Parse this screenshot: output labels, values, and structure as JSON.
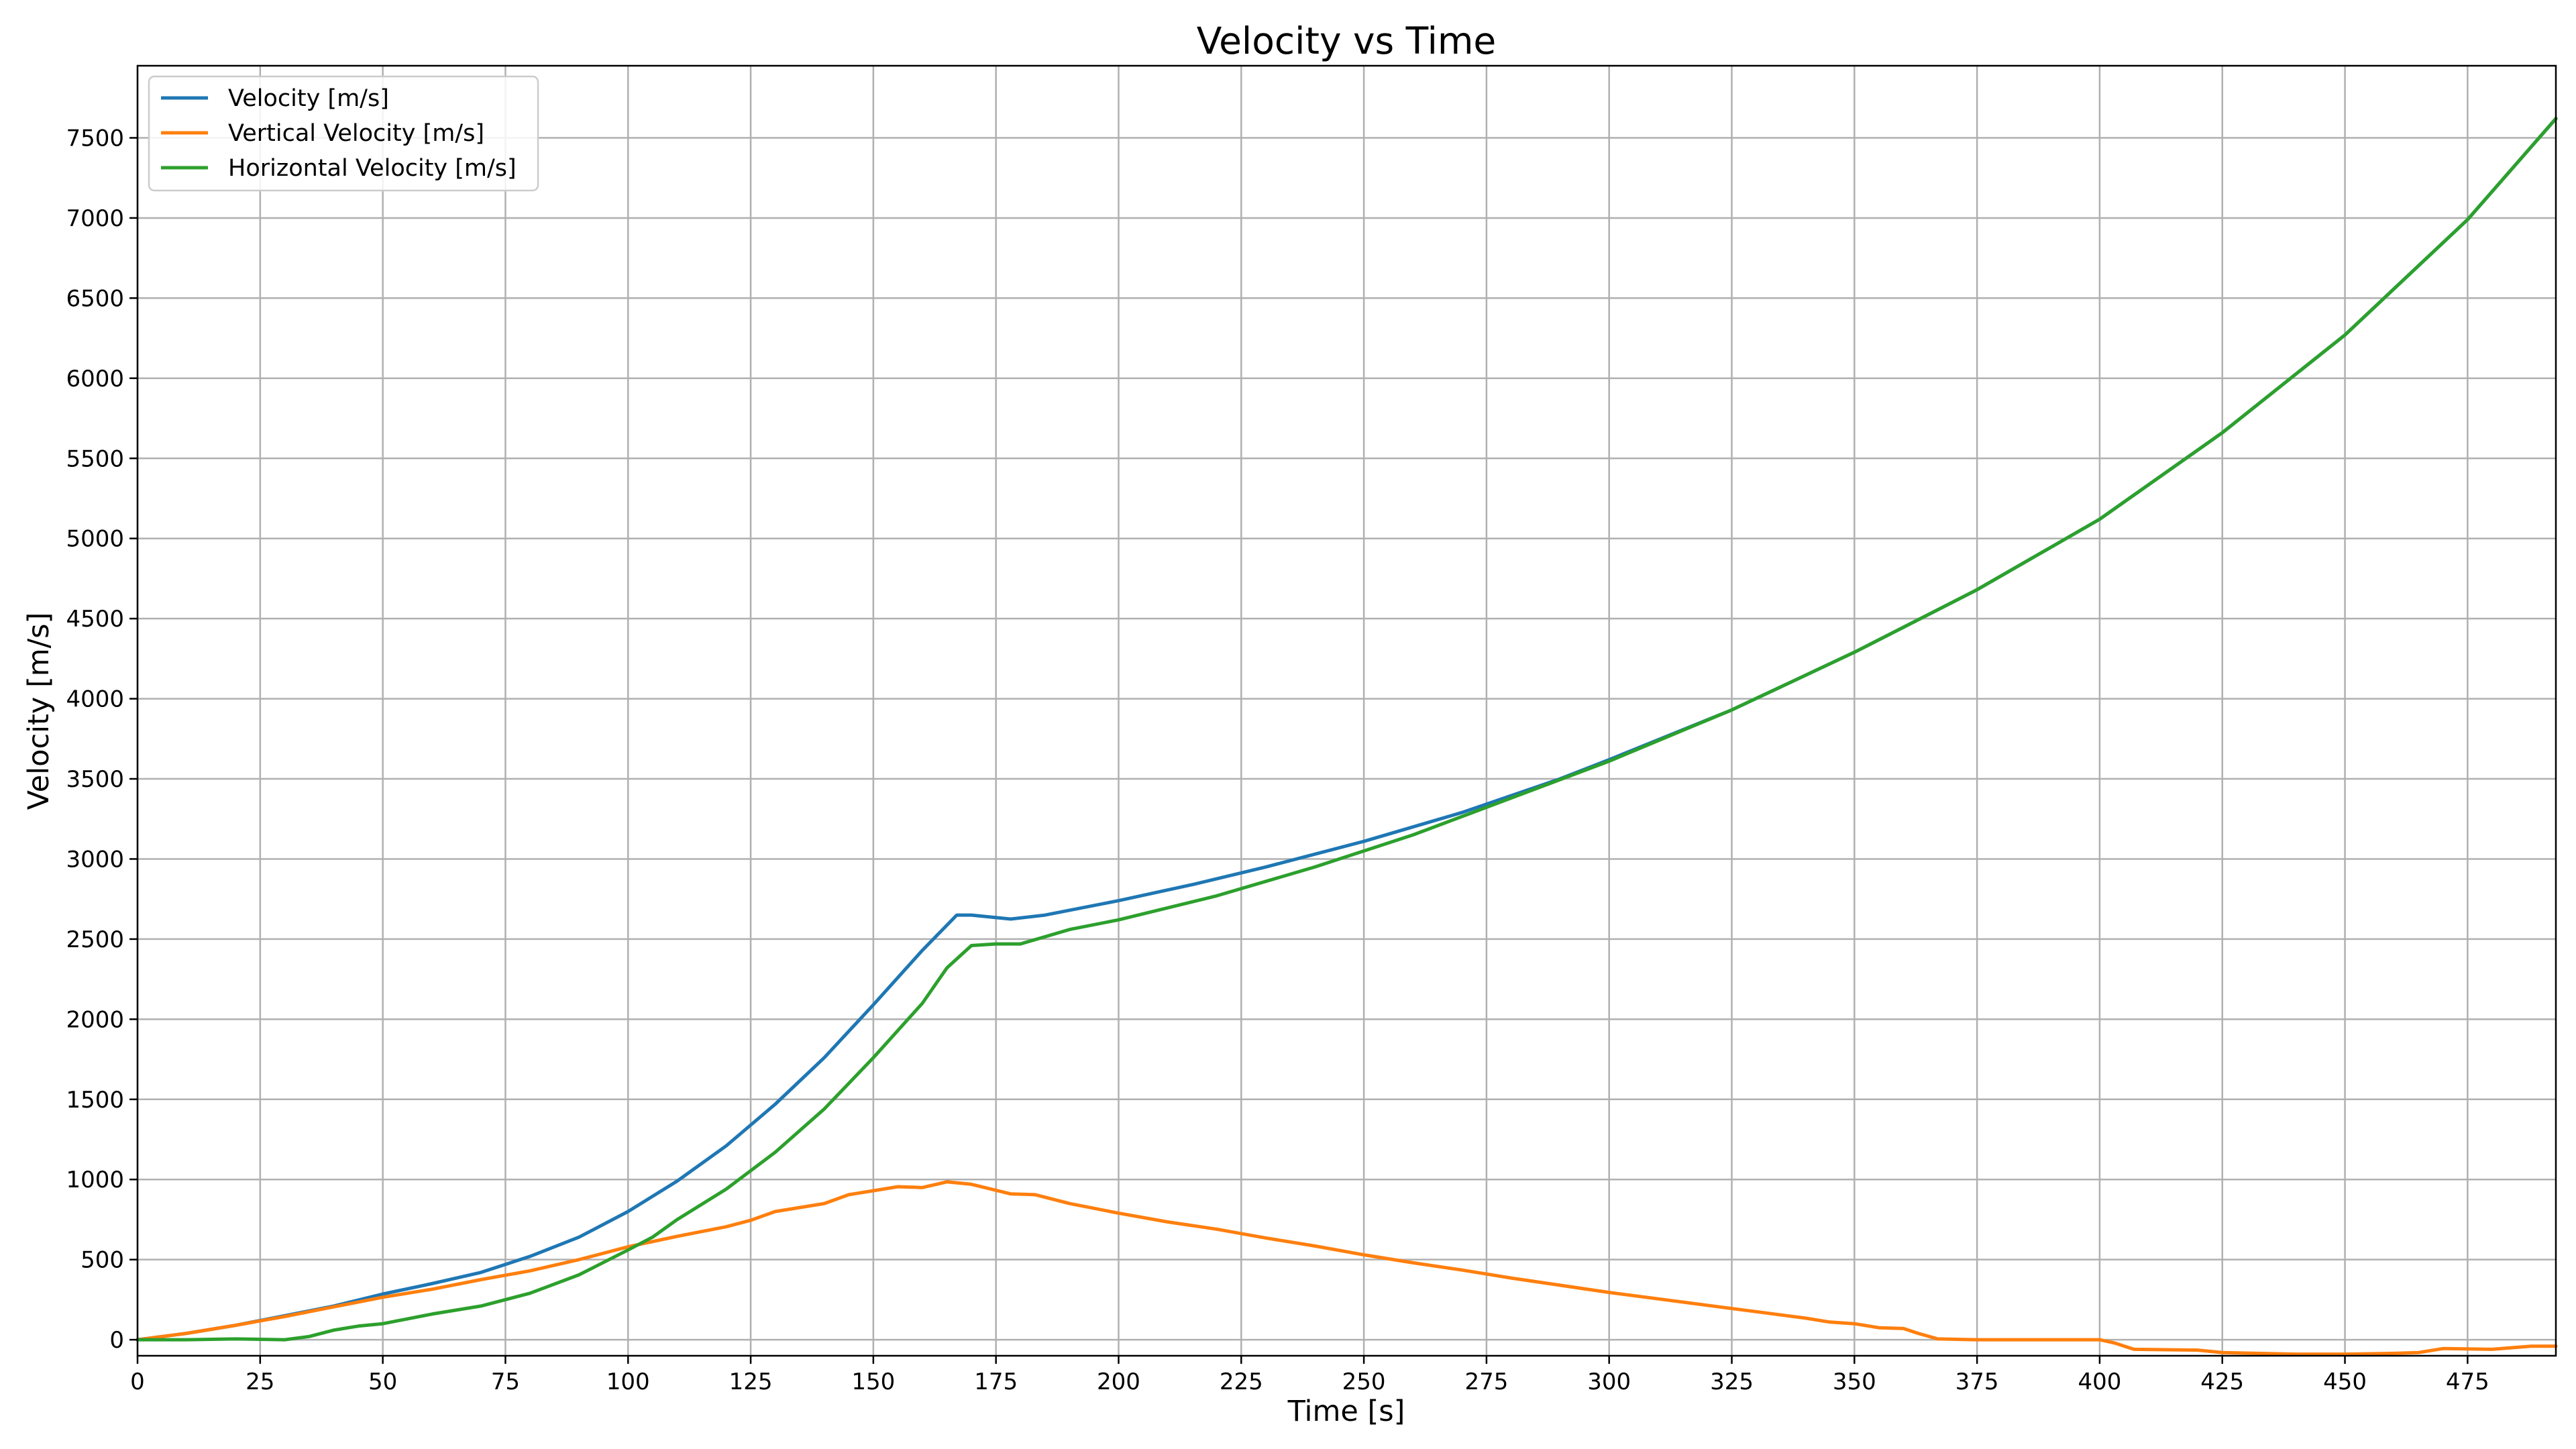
{
  "chart_data": {
    "type": "line",
    "title": "Velocity vs Time",
    "xlabel": "Time [s]",
    "ylabel": "Velocity [m/s]",
    "xlim": [
      0,
      493
    ],
    "ylim": [
      -100,
      7950
    ],
    "xticks": [
      0,
      25,
      50,
      75,
      100,
      125,
      150,
      175,
      200,
      225,
      250,
      275,
      300,
      325,
      350,
      375,
      400,
      425,
      450,
      475
    ],
    "yticks": [
      0,
      500,
      1000,
      1500,
      2000,
      2500,
      3000,
      3500,
      4000,
      4500,
      5000,
      5500,
      6000,
      6500,
      7000,
      7500
    ],
    "grid": true,
    "legend_position": "top-left",
    "series": [
      {
        "name": "Velocity [m/s]",
        "color": "#1f77b4",
        "points": [
          [
            0,
            0
          ],
          [
            10,
            40
          ],
          [
            20,
            90
          ],
          [
            30,
            150
          ],
          [
            40,
            210
          ],
          [
            50,
            285
          ],
          [
            60,
            350
          ],
          [
            70,
            420
          ],
          [
            80,
            520
          ],
          [
            90,
            640
          ],
          [
            100,
            800
          ],
          [
            110,
            990
          ],
          [
            120,
            1210
          ],
          [
            130,
            1470
          ],
          [
            140,
            1760
          ],
          [
            150,
            2090
          ],
          [
            160,
            2430
          ],
          [
            167,
            2650
          ],
          [
            170,
            2650
          ],
          [
            178,
            2625
          ],
          [
            185,
            2650
          ],
          [
            200,
            2740
          ],
          [
            215,
            2840
          ],
          [
            230,
            2950
          ],
          [
            250,
            3110
          ],
          [
            270,
            3290
          ],
          [
            290,
            3500
          ],
          [
            300,
            3620
          ],
          [
            325,
            3930
          ],
          [
            350,
            4290
          ],
          [
            375,
            4680
          ],
          [
            400,
            5120
          ],
          [
            425,
            5660
          ],
          [
            450,
            6270
          ],
          [
            475,
            6990
          ],
          [
            493,
            7620
          ]
        ]
      },
      {
        "name": "Vertical Velocity [m/s]",
        "color": "#ff7f0e",
        "points": [
          [
            0,
            0
          ],
          [
            10,
            40
          ],
          [
            20,
            90
          ],
          [
            30,
            145
          ],
          [
            40,
            205
          ],
          [
            50,
            265
          ],
          [
            60,
            315
          ],
          [
            70,
            375
          ],
          [
            80,
            430
          ],
          [
            90,
            500
          ],
          [
            100,
            580
          ],
          [
            110,
            645
          ],
          [
            120,
            705
          ],
          [
            125,
            745
          ],
          [
            130,
            800
          ],
          [
            140,
            850
          ],
          [
            145,
            905
          ],
          [
            150,
            930
          ],
          [
            155,
            955
          ],
          [
            160,
            950
          ],
          [
            165,
            985
          ],
          [
            170,
            970
          ],
          [
            178,
            910
          ],
          [
            183,
            905
          ],
          [
            190,
            850
          ],
          [
            200,
            790
          ],
          [
            210,
            735
          ],
          [
            220,
            690
          ],
          [
            230,
            635
          ],
          [
            240,
            585
          ],
          [
            250,
            530
          ],
          [
            260,
            480
          ],
          [
            270,
            435
          ],
          [
            280,
            385
          ],
          [
            290,
            340
          ],
          [
            300,
            295
          ],
          [
            310,
            255
          ],
          [
            320,
            215
          ],
          [
            330,
            175
          ],
          [
            340,
            135
          ],
          [
            345,
            110
          ],
          [
            350,
            100
          ],
          [
            355,
            75
          ],
          [
            360,
            70
          ],
          [
            363,
            40
          ],
          [
            367,
            5
          ],
          [
            375,
            0
          ],
          [
            390,
            0
          ],
          [
            400,
            0
          ],
          [
            403,
            -20
          ],
          [
            407,
            -60
          ],
          [
            420,
            -65
          ],
          [
            425,
            -80
          ],
          [
            440,
            -90
          ],
          [
            450,
            -90
          ],
          [
            460,
            -85
          ],
          [
            465,
            -80
          ],
          [
            470,
            -55
          ],
          [
            480,
            -60
          ],
          [
            488,
            -40
          ],
          [
            493,
            -40
          ]
        ]
      },
      {
        "name": "Horizontal Velocity [m/s]",
        "color": "#2ca02c",
        "points": [
          [
            0,
            0
          ],
          [
            10,
            0
          ],
          [
            20,
            5
          ],
          [
            30,
            0
          ],
          [
            35,
            20
          ],
          [
            40,
            60
          ],
          [
            45,
            85
          ],
          [
            50,
            100
          ],
          [
            55,
            130
          ],
          [
            60,
            160
          ],
          [
            70,
            210
          ],
          [
            80,
            290
          ],
          [
            90,
            405
          ],
          [
            100,
            560
          ],
          [
            105,
            640
          ],
          [
            110,
            750
          ],
          [
            120,
            940
          ],
          [
            130,
            1170
          ],
          [
            140,
            1440
          ],
          [
            150,
            1760
          ],
          [
            160,
            2100
          ],
          [
            165,
            2320
          ],
          [
            170,
            2460
          ],
          [
            175,
            2470
          ],
          [
            180,
            2470
          ],
          [
            190,
            2560
          ],
          [
            200,
            2620
          ],
          [
            220,
            2770
          ],
          [
            240,
            2950
          ],
          [
            260,
            3150
          ],
          [
            280,
            3380
          ],
          [
            300,
            3610
          ],
          [
            325,
            3930
          ],
          [
            350,
            4290
          ],
          [
            375,
            4680
          ],
          [
            400,
            5120
          ],
          [
            425,
            5660
          ],
          [
            450,
            6270
          ],
          [
            475,
            6990
          ],
          [
            493,
            7620
          ]
        ]
      }
    ]
  }
}
